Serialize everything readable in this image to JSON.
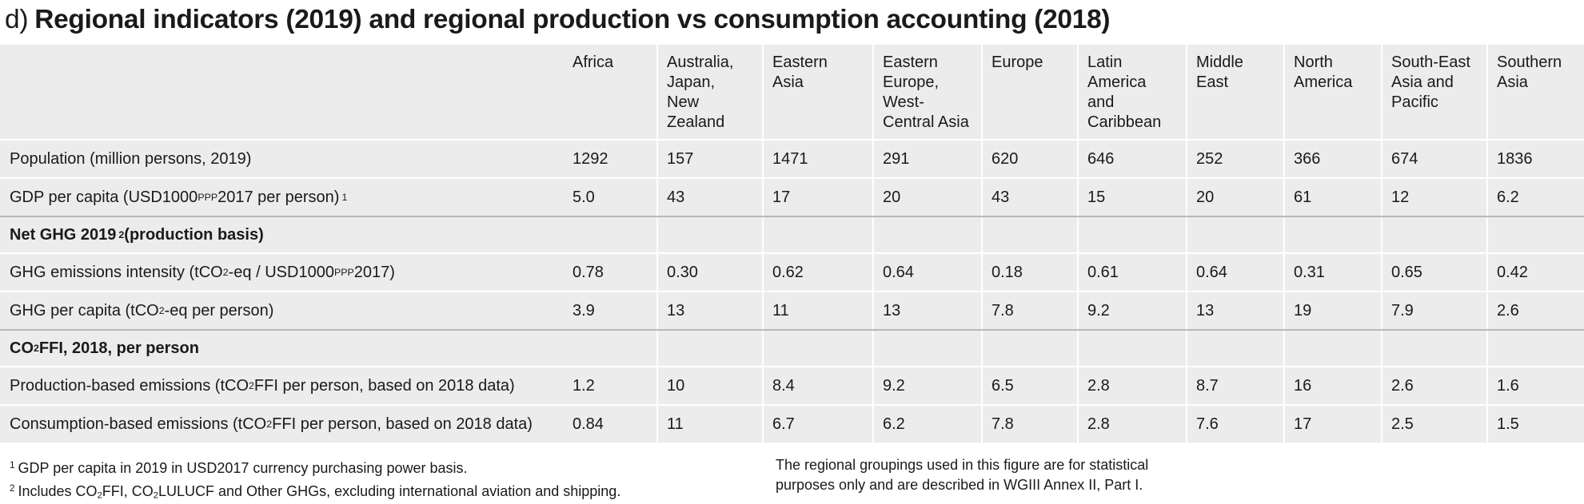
{
  "heading": {
    "prefix": "d)",
    "title": "Regional indicators (2019) and regional production vs consumption accounting (2018)"
  },
  "regions": [
    "Africa",
    "Australia,\nJapan,\nNew\nZealand",
    "Eastern\nAsia",
    "Eastern\nEurope,\nWest-\nCentral Asia",
    "Europe",
    "Latin\nAmerica\nand\nCaribbean",
    "Middle\nEast",
    "North\nAmerica",
    "South-East\nAsia and\nPacific",
    "Southern\nAsia"
  ],
  "rows": {
    "population": {
      "label": "Population (million persons, 2019)",
      "values": [
        "1292",
        "157",
        "1471",
        "291",
        "620",
        "646",
        "252",
        "366",
        "674",
        "1836"
      ]
    },
    "gdp": {
      "label_a": "GDP per capita (USD1000",
      "label_sub": "PPP",
      "label_b": " 2017 per person)",
      "note": "1",
      "values": [
        "5.0",
        "43",
        "17",
        "20",
        "43",
        "15",
        "20",
        "61",
        "12",
        "6.2"
      ]
    },
    "net_ghg_section": {
      "label": "Net GHG 2019",
      "note": "2",
      "label_b": " (production basis)"
    },
    "ghg_intensity": {
      "label_a": "GHG emissions intensity (tCO",
      "sub1": "2",
      "label_b": "-eq / USD1000",
      "sub2": "PPP",
      "label_c": " 2017)",
      "values": [
        "0.78",
        "0.30",
        "0.62",
        "0.64",
        "0.18",
        "0.61",
        "0.64",
        "0.31",
        "0.65",
        "0.42"
      ]
    },
    "ghg_per_capita": {
      "label_a": "GHG per capita (tCO",
      "sub1": "2",
      "label_b": "-eq per person)",
      "values": [
        "3.9",
        "13",
        "11",
        "13",
        "7.8",
        "9.2",
        "13",
        "19",
        "7.9",
        "2.6"
      ]
    },
    "co2_section": {
      "label_a": "CO",
      "sub1": "2",
      "label_b": "FFI, 2018, per person"
    },
    "production": {
      "label_a": "Production-based emissions (tCO",
      "sub1": "2",
      "label_b": "FFI per person, based on 2018 data)",
      "values": [
        "1.2",
        "10",
        "8.4",
        "9.2",
        "6.5",
        "2.8",
        "8.7",
        "16",
        "2.6",
        "1.6"
      ]
    },
    "consumption": {
      "label_a": "Consumption-based emissions (tCO",
      "sub1": "2",
      "label_b": "FFI per person, based on 2018 data)",
      "values": [
        "0.84",
        "11",
        "6.7",
        "6.2",
        "7.8",
        "2.8",
        "7.6",
        "17",
        "2.5",
        "1.5"
      ]
    }
  },
  "footnotes": {
    "note1_mark": "1",
    "note1_text": "GDP per capita in 2019 in USD2017 currency purchasing power basis.",
    "note2_mark": "2",
    "note2_a": "Includes CO",
    "note2_sub1": "2",
    "note2_b": "FFI, CO",
    "note2_sub2": "2",
    "note2_c": "LULUCF and Other GHGs, excluding international aviation and shipping.",
    "right_line1": "The regional groupings used in this figure are for statistical",
    "right_line2": "purposes only and are described in WGIII Annex II, Part I."
  }
}
